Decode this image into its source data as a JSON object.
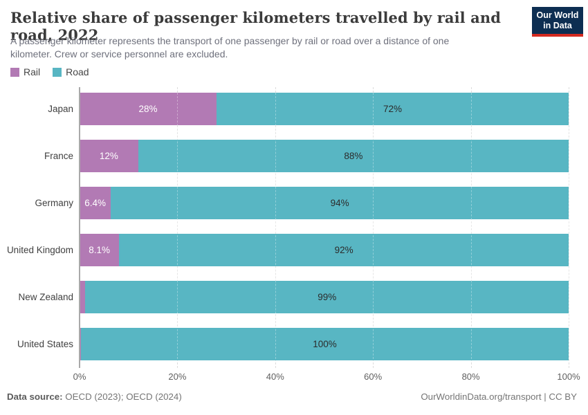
{
  "logo": {
    "text_line1": "Our World",
    "text_line2": "in Data",
    "bg_color": "#0d2e52",
    "stripe_color": "#d42a20"
  },
  "header": {
    "title": "Relative share of passenger kilometers travelled by rail and road, 2022",
    "subtitle_line1": "A passenger kilometer represents the transport of one passenger by rail or road over a distance of one",
    "subtitle_line2": "kilometer. Crew or service personnel are excluded."
  },
  "legend": {
    "items": [
      {
        "label": "Rail",
        "color": "#b27ab4"
      },
      {
        "label": "Road",
        "color": "#58b6c3"
      }
    ]
  },
  "chart_data": {
    "type": "bar",
    "orientation": "horizontal",
    "stacked": true,
    "unit": "%",
    "categories": [
      "Japan",
      "France",
      "Germany",
      "United Kingdom",
      "New Zealand",
      "United States"
    ],
    "series": [
      {
        "name": "Rail",
        "color": "#b27ab4",
        "values": [
          28,
          12,
          6.4,
          8.1,
          1.2,
          0.3
        ],
        "bar_labels": [
          "28%",
          "12%",
          "6.4%",
          "8.1%",
          "",
          ""
        ],
        "label_color": "#ffffff"
      },
      {
        "name": "Road",
        "color": "#58b6c3",
        "values": [
          72,
          88,
          93.6,
          91.9,
          98.8,
          99.7
        ],
        "bar_labels": [
          "72%",
          "88%",
          "94%",
          "92%",
          "99%",
          "100%"
        ],
        "label_color": "#2b2b2b"
      }
    ],
    "x_ticks": [
      {
        "value": 0,
        "label": "0%"
      },
      {
        "value": 20,
        "label": "20%"
      },
      {
        "value": 40,
        "label": "40%"
      },
      {
        "value": 60,
        "label": "60%"
      },
      {
        "value": 80,
        "label": "80%"
      },
      {
        "value": 100,
        "label": "100%"
      }
    ],
    "xlim": [
      0,
      100
    ],
    "grid": true,
    "legend_position": "top-left"
  },
  "footer": {
    "source_label": "Data source:",
    "source_value": "OECD (2023); OECD (2024)",
    "credit": "OurWorldinData.org/transport | CC BY"
  }
}
